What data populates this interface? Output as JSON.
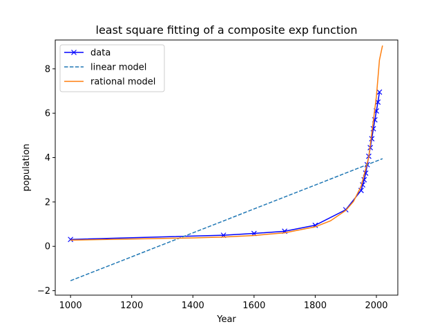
{
  "chart_data": {
    "type": "line",
    "title": "least square fitting of a composite exp function",
    "xlabel": "Year",
    "ylabel": "population",
    "xlim": [
      950,
      2070
    ],
    "ylim": [
      -2.2,
      9.3
    ],
    "x_ticks": [
      1000,
      1200,
      1400,
      1600,
      1800,
      2000
    ],
    "y_ticks": [
      -2,
      0,
      2,
      4,
      6,
      8
    ],
    "grid": false,
    "legend_position": "upper-left",
    "series": [
      {
        "name": "data",
        "color": "#0000ff",
        "style": "solid line with x markers",
        "x": [
          1000,
          1500,
          1600,
          1700,
          1800,
          1900,
          1950,
          1955,
          1960,
          1965,
          1970,
          1975,
          1980,
          1985,
          1990,
          1995,
          2000,
          2005,
          2010
        ],
        "y": [
          0.31,
          0.5,
          0.58,
          0.68,
          0.95,
          1.65,
          2.52,
          2.77,
          3.0,
          3.3,
          3.68,
          4.06,
          4.45,
          4.85,
          5.3,
          5.7,
          6.1,
          6.5,
          6.95
        ]
      },
      {
        "name": "linear model",
        "color": "#1f77b4",
        "style": "dashed",
        "x": [
          1000,
          2020
        ],
        "y": [
          -1.55,
          3.95
        ]
      },
      {
        "name": "rational model",
        "color": "#ff7f0e",
        "style": "solid",
        "x": [
          1000,
          1200,
          1400,
          1500,
          1600,
          1700,
          1800,
          1850,
          1900,
          1925,
          1950,
          1975,
          2000,
          2010,
          2020
        ],
        "y": [
          0.28,
          0.33,
          0.38,
          0.42,
          0.49,
          0.61,
          0.88,
          1.15,
          1.62,
          2.02,
          2.7,
          4.02,
          6.75,
          8.4,
          9.05
        ]
      }
    ]
  }
}
